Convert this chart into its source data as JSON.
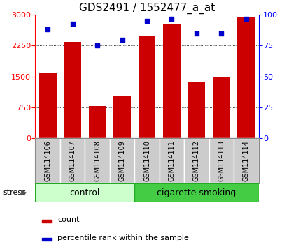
{
  "title": "GDS2491 / 1552477_a_at",
  "samples": [
    "GSM114106",
    "GSM114107",
    "GSM114108",
    "GSM114109",
    "GSM114110",
    "GSM114111",
    "GSM114112",
    "GSM114113",
    "GSM114114"
  ],
  "counts": [
    1600,
    2350,
    780,
    1020,
    2500,
    2780,
    1380,
    1480,
    2950
  ],
  "percentiles": [
    88,
    93,
    75,
    80,
    95,
    97,
    85,
    85,
    97
  ],
  "groups": [
    {
      "label": "control",
      "start": 0,
      "end": 4,
      "color": "#ccffcc"
    },
    {
      "label": "cigarette smoking",
      "start": 4,
      "end": 9,
      "color": "#44cc44"
    }
  ],
  "stress_label": "stress",
  "ylim_left": [
    0,
    3000
  ],
  "ylim_right": [
    0,
    100
  ],
  "yticks_left": [
    0,
    750,
    1500,
    2250,
    3000
  ],
  "yticks_right": [
    0,
    25,
    50,
    75,
    100
  ],
  "bar_color": "#cc0000",
  "dot_color": "#0000cc",
  "background_color": "#ffffff",
  "label_bg_color": "#cccccc",
  "label_edge_color": "#ffffff",
  "title_fontsize": 11,
  "tick_fontsize": 8,
  "label_fontsize": 7,
  "group_fontsize": 9,
  "legend_fontsize": 8
}
